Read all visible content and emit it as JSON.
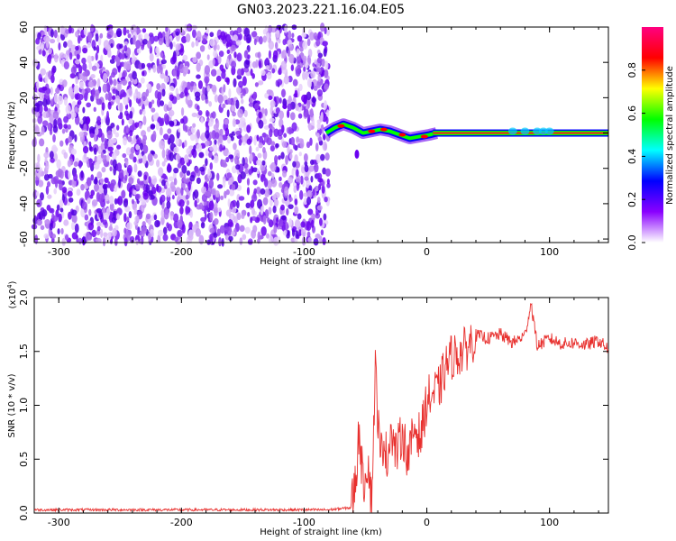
{
  "figure": {
    "title": "GN03.2023.221.16.04.E05"
  },
  "chart_data": [
    {
      "type": "heatmap",
      "xlabel": "Height of straight line (km)",
      "ylabel": "Frequency (Hz)",
      "xlim": [
        -320,
        148
      ],
      "ylim": [
        -62,
        60
      ],
      "x_ticks": [
        "-300",
        "-200",
        "-100",
        "0",
        "100"
      ],
      "y_ticks": [
        "-60",
        "-40",
        "-20",
        "0",
        "20",
        "40",
        "60"
      ],
      "description_regions": {
        "noise_region_x": [
          -320,
          -80
        ],
        "signal_line_freq_hz": 0
      },
      "colorbar": {
        "label": "Normalized spectral amplitude",
        "range": [
          0,
          1
        ],
        "ticks": [
          "0.0",
          "0.2",
          "0.4",
          "0.6",
          "0.8"
        ],
        "colors": [
          "#ffffff",
          "#8a00ff",
          "#0000ff",
          "#00ffff",
          "#00ff00",
          "#ffff00",
          "#ff0000",
          "#ff0080"
        ]
      }
    },
    {
      "type": "line",
      "xlabel": "Height of straight line (km)",
      "ylabel": "SNR (10 * v/v)",
      "scale_note": "(x10",
      "scale_exp": "4",
      "scale_close": ")",
      "xlim": [
        -320,
        148
      ],
      "ylim": [
        0,
        2.0
      ],
      "x_ticks": [
        "-300",
        "-200",
        "-100",
        "0",
        "100"
      ],
      "y_ticks": [
        "0.0",
        "0.5",
        "1.0",
        "1.5",
        "2.0"
      ],
      "color": "#e8302e",
      "series": [
        {
          "x": [
            -320,
            -80,
            -62,
            -58,
            -55,
            -52,
            -48,
            -45,
            -42,
            -38,
            -35,
            -32,
            -30,
            -25,
            -20,
            -15,
            -10,
            -5,
            0,
            5,
            10,
            15,
            20,
            30,
            40,
            50,
            60,
            70,
            80,
            85,
            90,
            100,
            110,
            120,
            130,
            140,
            148
          ],
          "y": [
            0.03,
            0.03,
            0.05,
            0.3,
            0.8,
            0.25,
            0.5,
            0.1,
            1.35,
            0.5,
            0.7,
            0.45,
            0.8,
            0.55,
            0.75,
            0.5,
            0.8,
            0.7,
            1.05,
            1.1,
            1.15,
            1.35,
            1.45,
            1.5,
            1.65,
            1.62,
            1.66,
            1.58,
            1.65,
            1.95,
            1.55,
            1.62,
            1.57,
            1.58,
            1.56,
            1.6,
            1.52
          ]
        }
      ]
    }
  ]
}
